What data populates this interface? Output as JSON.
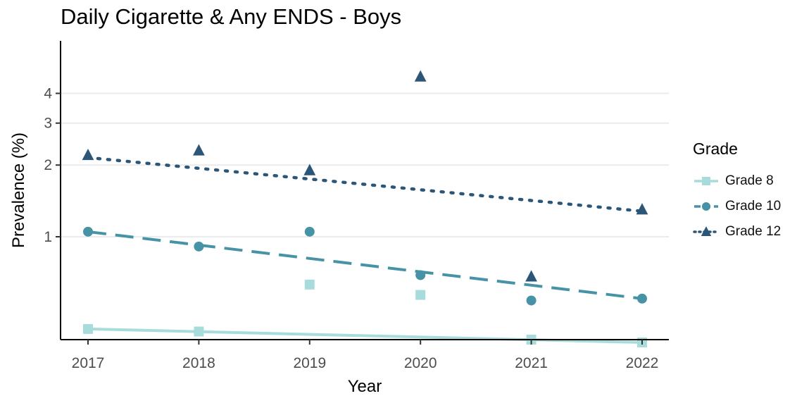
{
  "chart_data": {
    "type": "scatter",
    "title": "Daily Cigarette & Any ENDS - Boys",
    "xlabel": "Year",
    "ylabel": "Prevalence (%)",
    "y_scale": "log",
    "y_ticks": [
      1,
      2,
      3,
      4
    ],
    "y_range": [
      0.36,
      5.2
    ],
    "x_ticks": [
      "2017",
      "2018",
      "2019",
      "2020",
      "2021",
      "2022"
    ],
    "legend_title": "Grade",
    "legend_position": "right",
    "grid": "horizontal",
    "series": [
      {
        "name": "Grade 8",
        "marker": "square",
        "line_style": "solid",
        "color": "#a8dcdc",
        "points": [
          {
            "x": "2017",
            "y": 0.41
          },
          {
            "x": "2018",
            "y": 0.4
          },
          {
            "x": "2019",
            "y": 0.63
          },
          {
            "x": "2020",
            "y": 0.57
          },
          {
            "x": "2021",
            "y": 0.37
          },
          {
            "x": "2022",
            "y": 0.36
          }
        ],
        "trend": [
          0.41,
          0.36
        ]
      },
      {
        "name": "Grade 10",
        "marker": "circle",
        "line_style": "dashed",
        "color": "#4793a6",
        "points": [
          {
            "x": "2017",
            "y": 1.05
          },
          {
            "x": "2018",
            "y": 0.91
          },
          {
            "x": "2019",
            "y": 1.05
          },
          {
            "x": "2020",
            "y": 0.69
          },
          {
            "x": "2021",
            "y": 0.54
          },
          {
            "x": "2022",
            "y": 0.55
          }
        ],
        "trend": [
          1.05,
          0.55
        ]
      },
      {
        "name": "Grade 12",
        "marker": "triangle",
        "line_style": "dotted",
        "color": "#2c5677",
        "points": [
          {
            "x": "2017",
            "y": 2.2
          },
          {
            "x": "2018",
            "y": 2.3
          },
          {
            "x": "2019",
            "y": 1.9
          },
          {
            "x": "2020",
            "y": 4.7
          },
          {
            "x": "2021",
            "y": 0.68
          },
          {
            "x": "2022",
            "y": 1.3
          }
        ],
        "trend": [
          2.15,
          1.28
        ]
      }
    ]
  }
}
